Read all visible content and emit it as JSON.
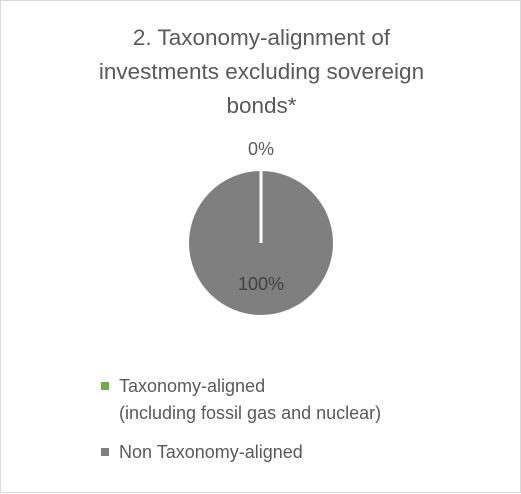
{
  "chart_data": {
    "type": "pie",
    "title_lines": [
      "2. Taxonomy-alignment of",
      "investments excluding sovereign",
      "bonds*"
    ],
    "labels": [
      "Taxonomy-aligned\n(including fossil gas and nuclear)",
      "Non Taxonomy-aligned"
    ],
    "values": [
      0,
      100
    ],
    "data_labels": [
      "0%",
      "100%"
    ],
    "colors": [
      "#70ad47",
      "#7f7f7f"
    ],
    "legend_position": "bottom"
  },
  "legend": [
    {
      "lines": [
        "Taxonomy-aligned",
        "(including fossil gas and nuclear)"
      ],
      "color": "#70ad47"
    },
    {
      "lines": [
        "Non Taxonomy-aligned"
      ],
      "color": "#7f7f7f"
    }
  ]
}
